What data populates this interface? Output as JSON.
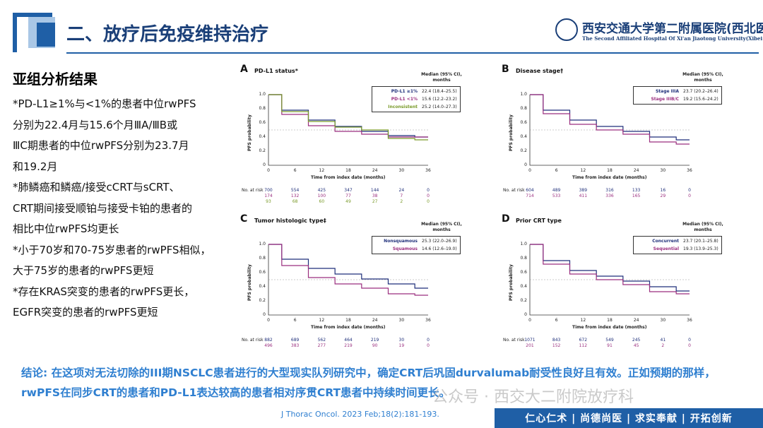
{
  "header": {
    "title": "二、放疗后免疫维持治疗",
    "logo_main": "西安交通大学第二附属医院(西北医院)",
    "logo_sub": "The Second Affiliated Hospital Of Xi'an Jiaotong University(Xibei Hospital)"
  },
  "left": {
    "subhead": "亚组分析结果",
    "lines": [
      "*PD-L1≥1%与<1%的患者中位rwPFS",
      "分别为22.4月与15.6个月ⅢA/ⅢB或",
      "ⅢC期患者的中位rwPFS分别为23.7月",
      "和19.2月",
      "*肺鳞癌和鳞癌/接受cCRT与sCRT、",
      "CRT期间接受顺铂与接受卡铂的患者的",
      "相比中位rwPFS均更长",
      "*小于70岁和70-75岁患者的rwPFS相似，",
      "大于75岁的患者的rwPFS更短",
      "*存在KRAS突变的患者的rwPFS更长，",
      "EGFR突变的患者的rwPFS更短"
    ]
  },
  "common": {
    "ylabel": "PFS probability",
    "xlabel": "Time from index date (months)",
    "risk_label": "No. at risk",
    "median_head": "Median (95% CI),\nmonths",
    "yticks": [
      "1.0",
      "0.8",
      "0.6",
      "0.4",
      "0.2",
      "0"
    ],
    "xticks": [
      "0",
      "6",
      "12",
      "18",
      "24",
      "30",
      "36"
    ]
  },
  "chart_data": [
    {
      "type": "line",
      "panel": "A",
      "title": "PD-L1 status*",
      "x": [
        0,
        6,
        12,
        18,
        24,
        30,
        36
      ],
      "xlabel": "Time from index date (months)",
      "ylabel": "PFS probability",
      "ylim": [
        0,
        1.0
      ],
      "xlim": [
        0,
        36
      ],
      "series": [
        {
          "name": "PD-L1 ≥1%",
          "median": "22.4 (18.4–25.5)",
          "color": "#1f2f7a",
          "values": [
            1.0,
            0.78,
            0.64,
            0.55,
            0.48,
            0.42,
            0.4
          ],
          "risk": [
            "700",
            "554",
            "425",
            "347",
            "144",
            "24",
            "0"
          ]
        },
        {
          "name": "PD-L1 <1%",
          "median": "15.6 (12.2–23.2)",
          "color": "#9b2f7f",
          "values": [
            1.0,
            0.72,
            0.56,
            0.48,
            0.44,
            0.4,
            0.4
          ],
          "risk": [
            "174",
            "132",
            "100",
            "77",
            "38",
            "7",
            "0"
          ]
        },
        {
          "name": "Inconsistent",
          "median": "25.2 (14.0–27.3)",
          "color": "#7a9a2a",
          "values": [
            1.0,
            0.76,
            0.62,
            0.54,
            0.5,
            0.38,
            0.36
          ],
          "risk": [
            "93",
            "68",
            "60",
            "49",
            "27",
            "2",
            "0"
          ]
        }
      ]
    },
    {
      "type": "line",
      "panel": "B",
      "title": "Disease stage†",
      "x": [
        0,
        6,
        12,
        18,
        24,
        30,
        36
      ],
      "xlabel": "Time from index date (months)",
      "ylabel": "PFS probability",
      "ylim": [
        0,
        1.0
      ],
      "xlim": [
        0,
        36
      ],
      "series": [
        {
          "name": "Stage IIIA",
          "median": "23.7 (20.2–26.4)",
          "color": "#1f2f7a",
          "values": [
            1.0,
            0.78,
            0.64,
            0.55,
            0.48,
            0.4,
            0.36
          ],
          "risk": [
            "604",
            "489",
            "389",
            "316",
            "133",
            "16",
            "0"
          ]
        },
        {
          "name": "Stage IIIB/C",
          "median": "19.2 (15.6–24.2)",
          "color": "#9b2f7f",
          "values": [
            1.0,
            0.73,
            0.58,
            0.5,
            0.44,
            0.33,
            0.3
          ],
          "risk": [
            "714",
            "533",
            "411",
            "336",
            "165",
            "29",
            "0"
          ]
        }
      ]
    },
    {
      "type": "line",
      "panel": "C",
      "title": "Tumor histologic type‡",
      "x": [
        0,
        6,
        12,
        18,
        24,
        30,
        36
      ],
      "xlabel": "Time from index date (months)",
      "ylabel": "PFS probability",
      "ylim": [
        0,
        1.0
      ],
      "xlim": [
        0,
        36
      ],
      "series": [
        {
          "name": "Nonsquamous",
          "median": "25.3 (22.0–26.9)",
          "color": "#1f2f7a",
          "values": [
            1.0,
            0.79,
            0.66,
            0.58,
            0.51,
            0.44,
            0.38
          ],
          "risk": [
            "882",
            "689",
            "562",
            "464",
            "219",
            "30",
            "0"
          ]
        },
        {
          "name": "Squamous",
          "median": "14.6 (12.6–19.0)",
          "color": "#9b2f7f",
          "values": [
            1.0,
            0.7,
            0.53,
            0.44,
            0.38,
            0.3,
            0.28
          ],
          "risk": [
            "496",
            "383",
            "277",
            "219",
            "90",
            "19",
            "0"
          ]
        }
      ]
    },
    {
      "type": "line",
      "panel": "D",
      "title": "Prior CRT type",
      "x": [
        0,
        6,
        12,
        18,
        24,
        30,
        36
      ],
      "xlabel": "Time from index date (months)",
      "ylabel": "PFS probability",
      "ylim": [
        0,
        1.0
      ],
      "xlim": [
        0,
        36
      ],
      "series": [
        {
          "name": "Concurrent",
          "median": "23.7 (20.1–25.8)",
          "color": "#1f2f7a",
          "values": [
            1.0,
            0.77,
            0.63,
            0.55,
            0.48,
            0.4,
            0.34
          ],
          "risk": [
            "1071",
            "843",
            "672",
            "549",
            "245",
            "41",
            "0"
          ]
        },
        {
          "name": "Sequential",
          "median": "19.3 (13.9–25.3)",
          "color": "#9b2f7f",
          "values": [
            1.0,
            0.72,
            0.58,
            0.5,
            0.43,
            0.33,
            0.3
          ],
          "risk": [
            "201",
            "152",
            "112",
            "91",
            "45",
            "2",
            "0"
          ]
        }
      ]
    }
  ],
  "conclusion": "结论: 在这项对无法切除的III期NSCLC患者进行的大型现实队列研究中，确定CRT后巩固durvalumab耐受性良好且有效。正如预期的那样，rwPFS在同步CRT的患者和PD-L1表达较高的患者相对序贯CRT患者中持续时间更长。",
  "citation": "J Thorac Oncol. 2023 Feb;18(2):181-193.",
  "watermark": "公众号 · 西交大二附院放疗科",
  "footer": "仁心仁术 | 尚德尚医 | 求实奉献 | 开拓创新"
}
